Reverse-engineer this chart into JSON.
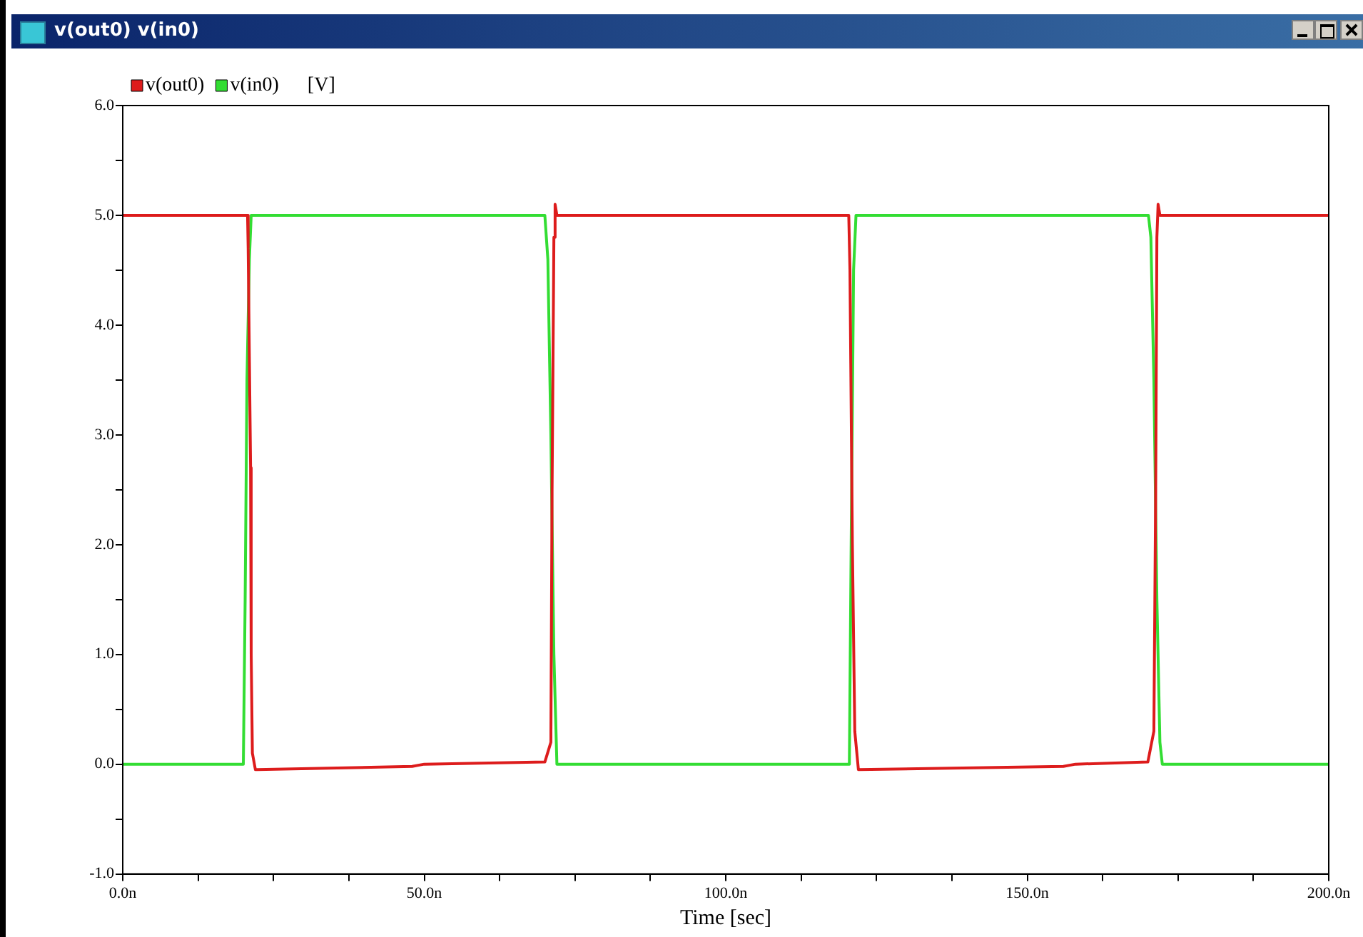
{
  "chart_data": {
    "type": "line",
    "title": "v(out0) v(in0)",
    "xlabel": "Time [sec]",
    "ylabel": "[V]",
    "legend": "top left",
    "grid": false,
    "marker": "none",
    "line_style": "solid",
    "xlim": [
      0,
      200
    ],
    "ylim": [
      -1,
      6
    ],
    "xticks": [
      {
        "value": 0,
        "label": "0.0n"
      },
      {
        "value": 12.5,
        "label": null
      },
      {
        "value": 25,
        "label": null
      },
      {
        "value": 37.5,
        "label": null
      },
      {
        "value": 50,
        "label": "50.0n"
      },
      {
        "value": 62.5,
        "label": null
      },
      {
        "value": 75,
        "label": null
      },
      {
        "value": 87.5,
        "label": null
      },
      {
        "value": 100,
        "label": "100.0n"
      },
      {
        "value": 112.5,
        "label": null
      },
      {
        "value": 125,
        "label": null
      },
      {
        "value": 137.5,
        "label": null
      },
      {
        "value": 150,
        "label": "150.0n"
      },
      {
        "value": 162.5,
        "label": null
      },
      {
        "value": 175,
        "label": null
      },
      {
        "value": 187.5,
        "label": null
      },
      {
        "value": 200,
        "label": "200.0n"
      }
    ],
    "yticks": [
      {
        "value": -1,
        "label": "-1.0"
      },
      {
        "value": -0.5,
        "label": null
      },
      {
        "value": 0,
        "label": "0.0"
      },
      {
        "value": 0.5,
        "label": null
      },
      {
        "value": 1,
        "label": "1.0"
      },
      {
        "value": 1.5,
        "label": null
      },
      {
        "value": 2,
        "label": "2.0"
      },
      {
        "value": 2.5,
        "label": null
      },
      {
        "value": 3,
        "label": "3.0"
      },
      {
        "value": 3.5,
        "label": null
      },
      {
        "value": 4,
        "label": "4.0"
      },
      {
        "value": 4.5,
        "label": null
      },
      {
        "value": 5,
        "label": "5.0"
      },
      {
        "value": 5.5,
        "label": null
      },
      {
        "value": 6,
        "label": "6.0"
      }
    ],
    "series": [
      {
        "name": "v(out0)",
        "color": "#dd1c1c",
        "x": [
          0,
          20.7,
          20.8,
          21.2,
          21.3,
          21.5,
          22,
          22.3,
          48,
          50,
          70,
          71,
          71.2,
          71.5,
          71.7,
          72,
          120.4,
          120.6,
          121,
          121.4,
          122,
          156,
          158,
          170,
          171,
          171.3,
          171.5,
          171.7,
          172,
          200
        ],
        "values": [
          5,
          5,
          4.7,
          2.7,
          1,
          0.1,
          -0.05,
          -0.05,
          -0.02,
          0,
          0.02,
          0.2,
          2.5,
          4.8,
          5.1,
          5,
          5,
          4.5,
          2,
          0.3,
          -0.05,
          -0.02,
          0,
          0.02,
          0.3,
          2.5,
          4.8,
          5.1,
          5,
          5
        ]
      },
      {
        "name": "v(in0)",
        "color": "#33dd33",
        "x": [
          0,
          20,
          20.3,
          20.6,
          21,
          21.3,
          69.6,
          70,
          70.5,
          71,
          71.5,
          72,
          120.5,
          120.8,
          121.2,
          121.6,
          170.1,
          170.5,
          171,
          171.5,
          172,
          172.4,
          200
        ],
        "values": [
          0,
          0,
          1.5,
          3.5,
          4.6,
          5,
          5,
          5,
          4.6,
          3,
          1,
          0,
          0,
          2,
          4.5,
          5,
          5,
          4.8,
          3.5,
          1.5,
          0.2,
          0,
          0
        ]
      }
    ]
  }
}
